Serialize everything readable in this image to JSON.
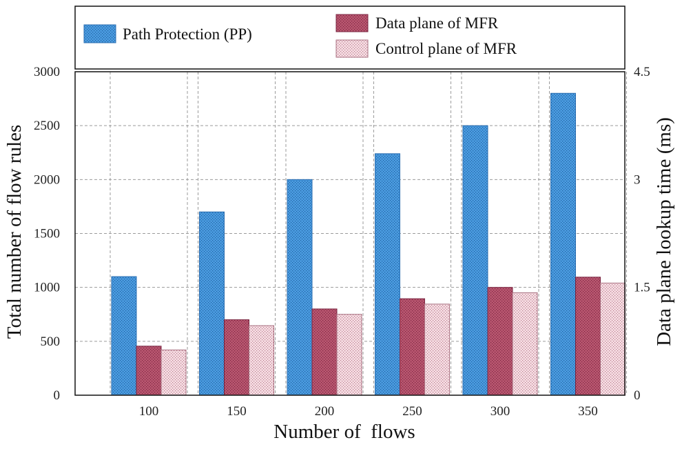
{
  "chart_data": {
    "type": "bar",
    "categories": [
      "100",
      "150",
      "200",
      "250",
      "300",
      "350"
    ],
    "series": [
      {
        "name": "Path Protection (PP)",
        "values": [
          1100,
          1700,
          2000,
          2240,
          2500,
          2800
        ],
        "color": "#3f8fd8",
        "pattern": "pp"
      },
      {
        "name": "Data plane of MFR",
        "values": [
          455,
          700,
          800,
          895,
          1000,
          1095
        ],
        "color": "#b04e6c",
        "pattern": "dp"
      },
      {
        "name": "Control plane of MFR",
        "values": [
          420,
          645,
          750,
          845,
          950,
          1040
        ],
        "color": "#f0d0d8",
        "pattern": "cp"
      }
    ],
    "xlabel": "Number of  flows",
    "ylabel": "Total number of flow rules",
    "y2label": "Data plane lookup time (ms)",
    "ylim": [
      0,
      3000
    ],
    "yticks": [
      0,
      500,
      1000,
      1500,
      2000,
      2500,
      3000
    ],
    "y2lim": [
      0,
      4.5
    ],
    "y2ticks": [
      {
        "value": 0,
        "label": "0"
      },
      {
        "value": 1.5,
        "label": "1.5"
      },
      {
        "value": 3,
        "label": "3"
      },
      {
        "value": 4.5,
        "label": "4.5"
      }
    ],
    "grid": true,
    "legend": "top"
  }
}
